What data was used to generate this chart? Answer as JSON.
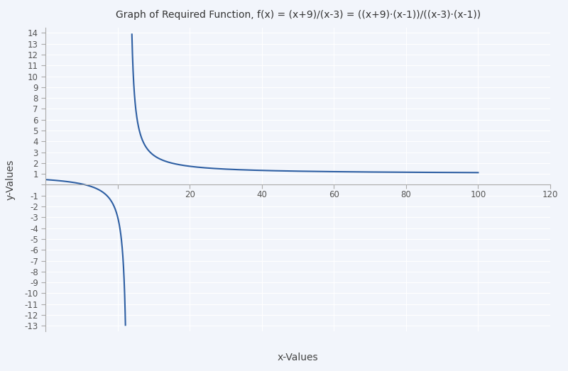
{
  "title": "Graph of Required Function, f(x) = (x+9)/(x-3) = ((x+9)·(x-1))/((x-3)·(x-1))",
  "xlabel": "x-Values",
  "ylabel": "y-Values",
  "xlim": [
    -20,
    120
  ],
  "ylim": [
    -13.5,
    14.5
  ],
  "xticks": [
    0,
    20,
    40,
    60,
    80,
    100,
    120
  ],
  "ytick_min": -13,
  "ytick_max": 14,
  "line_color": "#2E5FA3",
  "line_width": 1.5,
  "bg_color": "#F2F5FB",
  "grid_color": "#FFFFFF",
  "asymptote_x": 3,
  "x_left_start": -20,
  "x_left_end": 2.96,
  "x_right_start": 3.04,
  "x_right_end": 100,
  "clip_ymin": -13.0,
  "clip_ymax": 14.0
}
